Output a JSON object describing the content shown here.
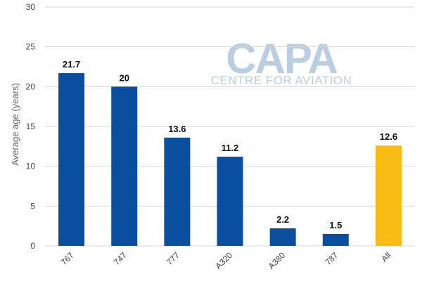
{
  "watermark": {
    "logo_text": "CAPA",
    "subtitle": "CENTRE FOR AVIATION",
    "color": "#b9cde3"
  },
  "colors": {
    "primary_bar": "#0a4f9f",
    "highlight_bar": "#f7bb12",
    "grid": "#d9d9d9"
  },
  "chart_data": {
    "type": "bar",
    "title": "",
    "xlabel": "",
    "ylabel": "Average age (years)",
    "categories": [
      "767",
      "747",
      "777",
      "A320",
      "A380",
      "787",
      "All"
    ],
    "values": [
      21.7,
      20,
      13.6,
      11.2,
      2.2,
      1.5,
      12.6
    ],
    "value_labels": [
      "21.7",
      "20",
      "13.6",
      "11.2",
      "2.2",
      "1.5",
      "12.6"
    ],
    "highlight_category": "All",
    "ylim": [
      0,
      30
    ],
    "yticks": [
      0,
      5,
      10,
      15,
      20,
      25,
      30
    ],
    "grid": true,
    "legend": "none"
  }
}
